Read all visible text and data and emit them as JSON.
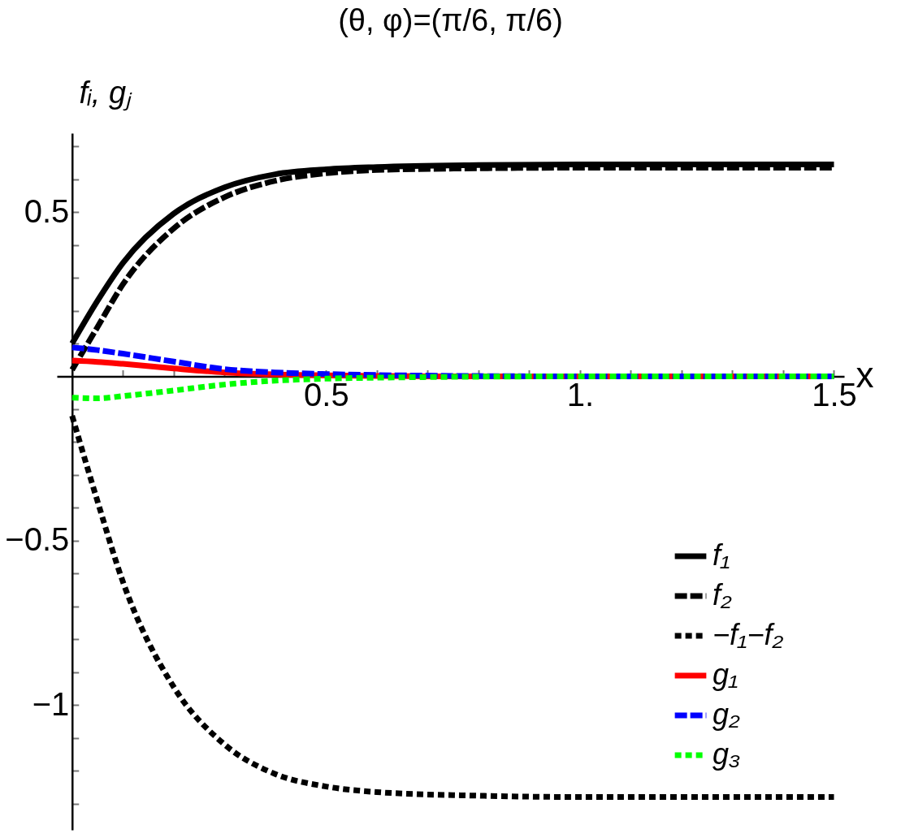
{
  "chart_data": {
    "type": "line",
    "title": "(θ, φ)=(π/6, π/6)",
    "xlabel": "x",
    "ylabel": "fᵢ, gⱼ",
    "x": [
      0,
      0.05,
      0.1,
      0.2,
      0.3,
      0.4,
      0.5,
      0.6,
      0.8,
      1.0,
      1.5
    ],
    "series": [
      {
        "name": "f₁",
        "color": "#000000",
        "line_style": "solid",
        "values": [
          0.1,
          0.23,
          0.345,
          0.495,
          0.575,
          0.615,
          0.63,
          0.637,
          0.643,
          0.645,
          0.645
        ]
      },
      {
        "name": "f₂",
        "color": "#000000",
        "line_style": "dashed",
        "values": [
          0.02,
          0.15,
          0.28,
          0.45,
          0.545,
          0.595,
          0.618,
          0.628,
          0.633,
          0.635,
          0.635
        ]
      },
      {
        "name": "−f₁−f₂",
        "color": "#000000",
        "line_style": "dotted",
        "values": [
          -0.12,
          -0.38,
          -0.625,
          -0.945,
          -1.12,
          -1.21,
          -1.248,
          -1.265,
          -1.276,
          -1.28,
          -1.28
        ]
      },
      {
        "name": "g₁",
        "color": "#ff0000",
        "line_style": "solid",
        "values": [
          0.048,
          0.044,
          0.038,
          0.024,
          0.012,
          0.006,
          0.003,
          0.001,
          0,
          0,
          0
        ]
      },
      {
        "name": "g₂",
        "color": "#0000ff",
        "line_style": "dashed",
        "values": [
          0.088,
          0.08,
          0.069,
          0.045,
          0.022,
          0.012,
          0.007,
          0.004,
          0.001,
          0,
          0
        ]
      },
      {
        "name": "g₃",
        "color": "#00ff00",
        "line_style": "dotted",
        "values": [
          -0.065,
          -0.067,
          -0.06,
          -0.043,
          -0.025,
          -0.013,
          -0.007,
          -0.004,
          -0.001,
          0,
          0
        ]
      }
    ],
    "xlim": [
      -0.03,
      1.52
    ],
    "ylim": [
      -1.38,
      0.74
    ],
    "xticks": [
      {
        "value": 0.1,
        "label": null
      },
      {
        "value": 0.2,
        "label": null
      },
      {
        "value": 0.3,
        "label": null
      },
      {
        "value": 0.4,
        "label": null
      },
      0.5,
      {
        "value": 0.6,
        "label": null
      },
      {
        "value": 0.7,
        "label": null
      },
      {
        "value": 0.8,
        "label": null
      },
      {
        "value": 0.9,
        "label": null
      },
      {
        "value": 1,
        "label": "1."
      },
      {
        "value": 1.1,
        "label": null
      },
      {
        "value": 1.2,
        "label": null
      },
      {
        "value": 1.3,
        "label": null
      },
      {
        "value": 1.4,
        "label": null
      },
      1.5
    ],
    "yticks": [
      {
        "value": -1.3,
        "label": null
      },
      {
        "value": -1.2,
        "label": null
      },
      {
        "value": -1.1,
        "label": null
      },
      {
        "value": -1,
        "label": "−1"
      },
      {
        "value": -0.9,
        "label": null
      },
      {
        "value": -0.8,
        "label": null
      },
      {
        "value": -0.7,
        "label": null
      },
      {
        "value": -0.6,
        "label": null
      },
      {
        "value": -0.5,
        "label": "−0.5"
      },
      {
        "value": -0.4,
        "label": null
      },
      {
        "value": -0.3,
        "label": null
      },
      {
        "value": -0.2,
        "label": null
      },
      {
        "value": -0.1,
        "label": null
      },
      {
        "value": 0.1,
        "label": null
      },
      {
        "value": 0.2,
        "label": null
      },
      {
        "value": 0.3,
        "label": null
      },
      {
        "value": 0.4,
        "label": null
      },
      0.5,
      {
        "value": 0.6,
        "label": null
      },
      {
        "value": 0.7,
        "label": null
      }
    ],
    "grid": false,
    "legend": "bottom right"
  }
}
